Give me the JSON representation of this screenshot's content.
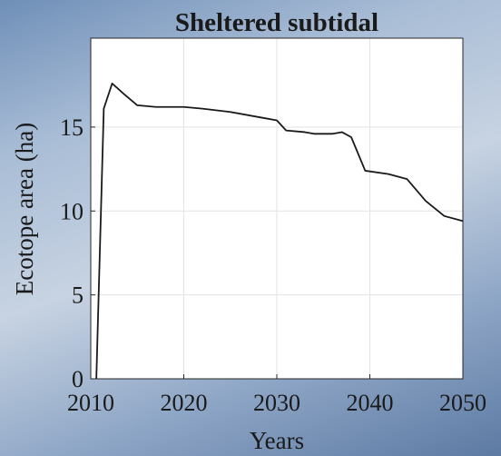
{
  "chart_data": {
    "type": "line",
    "title": "Sheltered subtidal",
    "x_label": "Years",
    "y_label": "Ecotope area (ha)",
    "x": [
      2010.6,
      2011.4,
      2012.3,
      2013.5,
      2015,
      2017,
      2020,
      2022,
      2025,
      2028,
      2030,
      2031,
      2033,
      2034,
      2036,
      2037,
      2038,
      2039.5,
      2042,
      2044,
      2046,
      2048,
      2050
    ],
    "series": [
      {
        "name": "Sheltered subtidal",
        "color": "#1a1a1a",
        "values": [
          0,
          16.1,
          17.6,
          17.0,
          16.3,
          16.2,
          16.2,
          16.1,
          15.9,
          15.6,
          15.4,
          14.8,
          14.7,
          14.6,
          14.6,
          14.7,
          14.4,
          12.4,
          12.2,
          11.9,
          10.6,
          9.7,
          9.4
        ]
      }
    ],
    "xlim": [
      2010,
      2050
    ],
    "xticks": [
      2010,
      2020,
      2030,
      2040,
      2050
    ],
    "ylim": [
      0,
      20.3
    ],
    "yticks": [
      0,
      5,
      10,
      15
    ],
    "grid": true
  }
}
